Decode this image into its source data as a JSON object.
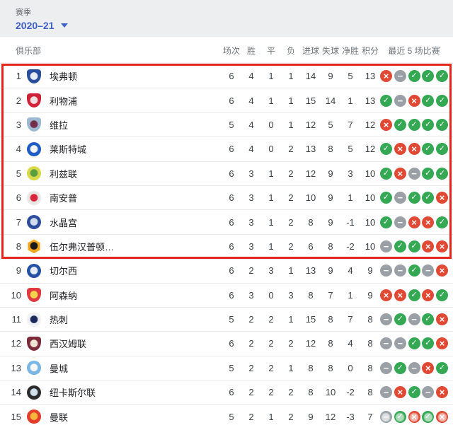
{
  "season_bar": {
    "label": "赛季",
    "value": "2020–21"
  },
  "table": {
    "club_header": "俱乐部",
    "stat_headers": [
      "场次",
      "胜",
      "平",
      "负",
      "进球",
      "失球",
      "净胜",
      "积分"
    ],
    "form_header": "最近 5 场比赛",
    "highlight_row_count": 8,
    "rows": [
      {
        "rank": "1",
        "name": "埃弗顿",
        "crest": {
          "shape": "shield",
          "outer": "#2a4e9e",
          "inner": "#e8edf7"
        },
        "stats": [
          "6",
          "4",
          "1",
          "1",
          "14",
          "9",
          "5",
          "13"
        ],
        "form": [
          "L",
          "D",
          "W",
          "W",
          "W"
        ]
      },
      {
        "rank": "2",
        "name": "利物浦",
        "crest": {
          "shape": "shield",
          "outer": "#cf2138",
          "inner": "#f2dede"
        },
        "stats": [
          "6",
          "4",
          "1",
          "1",
          "15",
          "14",
          "1",
          "13"
        ],
        "form": [
          "W",
          "D",
          "L",
          "W",
          "W"
        ]
      },
      {
        "rank": "3",
        "name": "维拉",
        "crest": {
          "shape": "shield",
          "outer": "#9db8d2",
          "inner": "#722f47"
        },
        "stats": [
          "5",
          "4",
          "0",
          "1",
          "12",
          "5",
          "7",
          "12"
        ],
        "form": [
          "L",
          "W",
          "W",
          "W",
          "W"
        ]
      },
      {
        "rank": "4",
        "name": "莱斯特城",
        "crest": {
          "shape": "circle",
          "outer": "#1f5bc4",
          "inner": "#f3f6fb"
        },
        "stats": [
          "6",
          "4",
          "0",
          "2",
          "13",
          "8",
          "5",
          "12"
        ],
        "form": [
          "W",
          "L",
          "L",
          "W",
          "W"
        ]
      },
      {
        "rank": "5",
        "name": "利兹联",
        "crest": {
          "shape": "circle",
          "outer": "#d9d84a",
          "inner": "#5a9e3f"
        },
        "stats": [
          "6",
          "3",
          "1",
          "2",
          "12",
          "9",
          "3",
          "10"
        ],
        "form": [
          "W",
          "L",
          "D",
          "W",
          "W"
        ]
      },
      {
        "rank": "6",
        "name": "南安普",
        "crest": {
          "shape": "circle",
          "outer": "#e9e7e4",
          "inner": "#d7263a"
        },
        "stats": [
          "6",
          "3",
          "1",
          "2",
          "10",
          "9",
          "1",
          "10"
        ],
        "form": [
          "W",
          "D",
          "W",
          "W",
          "L"
        ]
      },
      {
        "rank": "7",
        "name": "水晶宫",
        "crest": {
          "shape": "circle",
          "outer": "#2b4d9b",
          "inner": "#d1dcef"
        },
        "stats": [
          "6",
          "3",
          "1",
          "2",
          "8",
          "9",
          "-1",
          "10"
        ],
        "form": [
          "W",
          "D",
          "L",
          "L",
          "W"
        ]
      },
      {
        "rank": "8",
        "name": "伍尔弗汉普顿…",
        "crest": {
          "shape": "hex",
          "outer": "#f4a81d",
          "inner": "#1a1a1a"
        },
        "stats": [
          "6",
          "3",
          "1",
          "2",
          "6",
          "8",
          "-2",
          "10"
        ],
        "form": [
          "D",
          "W",
          "W",
          "L",
          "L"
        ]
      },
      {
        "rank": "9",
        "name": "切尔西",
        "crest": {
          "shape": "circle",
          "outer": "#2552a3",
          "inner": "#e8eef8"
        },
        "stats": [
          "6",
          "2",
          "3",
          "1",
          "13",
          "9",
          "4",
          "9"
        ],
        "form": [
          "D",
          "D",
          "W",
          "D",
          "L"
        ]
      },
      {
        "rank": "10",
        "name": "阿森纳",
        "crest": {
          "shape": "shield",
          "outer": "#e0393f",
          "inner": "#f6d44c"
        },
        "stats": [
          "6",
          "3",
          "0",
          "3",
          "8",
          "7",
          "1",
          "9"
        ],
        "form": [
          "L",
          "L",
          "W",
          "L",
          "W"
        ]
      },
      {
        "rank": "11",
        "name": "热刺",
        "crest": {
          "shape": "circle",
          "outer": "#eef0f4",
          "inner": "#1b2a5b"
        },
        "stats": [
          "5",
          "2",
          "2",
          "1",
          "15",
          "8",
          "7",
          "8"
        ],
        "form": [
          "D",
          "W",
          "D",
          "W",
          "L"
        ]
      },
      {
        "rank": "12",
        "name": "西汉姆联",
        "crest": {
          "shape": "shield",
          "outer": "#7d2c3b",
          "inner": "#f0e6d2"
        },
        "stats": [
          "6",
          "2",
          "2",
          "2",
          "12",
          "8",
          "4",
          "8"
        ],
        "form": [
          "D",
          "D",
          "W",
          "W",
          "L"
        ]
      },
      {
        "rank": "13",
        "name": "曼城",
        "crest": {
          "shape": "circle",
          "outer": "#79b6e3",
          "inner": "#f5f9fc"
        },
        "stats": [
          "5",
          "2",
          "2",
          "1",
          "8",
          "8",
          "0",
          "8"
        ],
        "form": [
          "D",
          "W",
          "D",
          "L",
          "W"
        ]
      },
      {
        "rank": "14",
        "name": "纽卡斯尔联",
        "crest": {
          "shape": "circle",
          "outer": "#2b2b2b",
          "inner": "#cfe0ee"
        },
        "stats": [
          "6",
          "2",
          "2",
          "2",
          "8",
          "10",
          "-2",
          "8"
        ],
        "form": [
          "D",
          "L",
          "W",
          "D",
          "L"
        ]
      },
      {
        "rank": "15",
        "name": "曼联",
        "crest": {
          "shape": "circle",
          "outer": "#e23c2b",
          "inner": "#f6b63c"
        },
        "stats": [
          "5",
          "2",
          "1",
          "2",
          "9",
          "12",
          "-3",
          "7"
        ],
        "form": [
          "D",
          "W",
          "L",
          "W",
          "L"
        ],
        "has_watermark": true
      }
    ]
  },
  "colors": {
    "win": "#34a853",
    "loss": "#e04a34",
    "draw": "#9aa0a6",
    "highlight_border": "#e5261b",
    "season_accent": "#3e61c4",
    "season_bar_bg": "#eceef0"
  }
}
